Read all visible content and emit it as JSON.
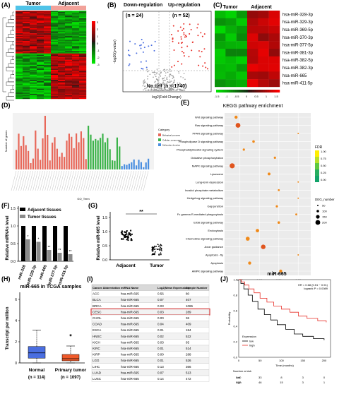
{
  "panels": {
    "A": {
      "letter": "(A)",
      "groups": [
        "Tumor",
        "Adjacent"
      ],
      "group_colors": [
        "#4fc3e8",
        "#f2a29a"
      ],
      "scale_ticks": [
        "3",
        "2",
        "1",
        "0",
        "-1",
        "-2",
        "-3"
      ]
    },
    "B": {
      "letter": "(B)",
      "down_label": "Down-regulation",
      "down_n": "(n = 24)",
      "up_label": "Up-regulation",
      "up_n": "(n = 52)",
      "nodiff": "No diff (n = 1740)",
      "xlabel": "log2(Fold Change)",
      "ylabel": "-log10(p-value)"
    },
    "C": {
      "letter": "(C)",
      "groups": [
        "Tumor",
        "Adjacent"
      ],
      "genes": [
        "hsa-miR-328-3p",
        "hsa-miR-329-3p",
        "hsa-miR-369-5p",
        "hsa-miR-370-3p",
        "hsa-miR-377-5p",
        "hsa-miR-381-3p",
        "hsa-miR-382-5p",
        "hsa-miR-382-3p",
        "hsa-miR-665",
        "hsa-miR-411-5p"
      ],
      "scale_ticks": [
        "-1.5",
        "-1",
        "-0.5",
        "0",
        "0.5",
        "1",
        "1.5"
      ]
    },
    "D": {
      "letter": "(D)",
      "ylabel": "Number of genes",
      "xlabel": "GO_Term",
      "legend_title": "Category",
      "legend": [
        {
          "name": "Biological_process",
          "color": "#e8685a"
        },
        {
          "name": "Cellular_component",
          "color": "#3cb34a"
        },
        {
          "name": "Molecular_function",
          "color": "#4a8fe0"
        }
      ]
    },
    "E": {
      "letter": "(E)",
      "title": "KEGG pathway enrichment",
      "pathways": [
        "Wnt signaling pathway",
        "Ras signaling pathway",
        "PPAR signaling pathway",
        "Phospholipase D signaling pathway",
        "Phosphatidylinositol signaling system",
        "Oxidative phosphorylation",
        "MAPK signaling pathway",
        "Lysosome",
        "Long-term depression",
        "Inositol phosphate metabolism",
        "Hedgehog signaling pathway",
        "Gap junction",
        "Fc gamma R-mediated phagocytosis",
        "ErbB signaling pathway",
        "Endocytosis",
        "Chemokine signaling pathway",
        "Axon guidance",
        "Apoptosis - fly",
        "Apoptosis",
        "AMPK signaling pathway"
      ],
      "x_ticks": [
        "0.97",
        "0.98",
        "0.99",
        "1.00"
      ],
      "fdr_title": "FDR",
      "fdr_ticks": [
        "1.00",
        "0.75",
        "0.50",
        "0.25",
        "0.00"
      ],
      "deg_title": "DEG_number",
      "deg_sizes": [
        "50",
        "100",
        "150",
        "200"
      ]
    },
    "F": {
      "letter": "(F)",
      "ylabel": "Relative miRNAs level",
      "legend": [
        "Adjacent tissues",
        "Tumor tissues"
      ],
      "categories": [
        "miR-328",
        "miR-329-3p",
        "miR-665",
        "miR-377-5p",
        "miR-411-5p"
      ],
      "y_ticks": [
        "0.0",
        "0.5",
        "1.0",
        "1.5"
      ],
      "stars": [
        "*",
        "*",
        "**",
        "**"
      ]
    },
    "G": {
      "letter": "(G)",
      "ylabel": "Relative miR-665 level",
      "groups": [
        "Adjacent",
        "Tumor"
      ],
      "y_ticks": [
        "0.0",
        "0.5",
        "1.0",
        "1.5"
      ],
      "sig": "**"
    },
    "H": {
      "letter": "(H)",
      "title": "miR-665 in TCGA samples",
      "ylabel": "Transcript per million",
      "groups": [
        "Normal",
        "Primary tumor"
      ],
      "ns": [
        "(n = 114)",
        "(n = 1097)"
      ],
      "y_ticks": [
        "0",
        "2",
        "4",
        "6"
      ],
      "sig": "*"
    },
    "I": {
      "letter": "(I)",
      "headers": [
        "Cancer Abbreviation",
        "miRNA Name",
        "Log2(Mean Expression)",
        "Sample Number"
      ],
      "rows": [
        [
          "ACC",
          "hsa-miR-665",
          "0.56",
          "80"
        ],
        [
          "BLCA",
          "hsa-miR-665",
          "0.07",
          "407"
        ],
        [
          "BRCA",
          "hsa-miR-665",
          "0.03",
          "1065"
        ],
        [
          "CESC",
          "hsa-miR-665",
          "0.03",
          "289"
        ],
        [
          "CHOL",
          "hsa-miR-665",
          "0.00",
          "36"
        ],
        [
          "COAD",
          "hsa-miR-665",
          "0.04",
          "409"
        ],
        [
          "ESCA",
          "hsa-miR-665",
          "0.01",
          "184"
        ],
        [
          "HNSC",
          "hsa-miR-665",
          "0.02",
          "522"
        ],
        [
          "KICH",
          "hsa-miR-665",
          "0.03",
          "65"
        ],
        [
          "KIRC",
          "hsa-miR-665",
          "0.01",
          "514"
        ],
        [
          "KIRP",
          "hsa-miR-665",
          "0.00",
          "288"
        ],
        [
          "LGG",
          "hsa-miR-665",
          "0.01",
          "526"
        ],
        [
          "LIHC",
          "hsa-miR-665",
          "0.13",
          "366"
        ],
        [
          "LUAD",
          "hsa-miR-665",
          "0.07",
          "513"
        ],
        [
          "LUSC",
          "hsa-miR-665",
          "0.14",
          "472"
        ]
      ]
    },
    "J": {
      "letter": "(J)",
      "title": "miR-665",
      "stats_hr": "HR = 0.68 (0.51 − 0.91)",
      "stats_p": "logrank P = 0.0089",
      "ylabel": "Probability",
      "xlabel": "Time (months)",
      "legend_title": "Expression",
      "legend": [
        "low",
        "high"
      ],
      "y_ticks": [
        "0.0",
        "0.2",
        "0.4",
        "0.6",
        "0.8",
        "1.0"
      ],
      "x_ticks": [
        "0",
        "50",
        "100",
        "150",
        "200"
      ],
      "risk_title": "Number at risk",
      "risk_low": [
        "low",
        "140",
        "33",
        "8",
        "3",
        "0"
      ],
      "risk_high": [
        "high",
        "122",
        "46",
        "15",
        "3",
        "1"
      ]
    }
  },
  "colors": {
    "tumor": "#4fc3e8",
    "adjacent": "#f2a29a",
    "red": "#e8312a",
    "green": "#22b33a",
    "black": "#000000",
    "gray": "#7f7f7f",
    "box_blue": "#4a6ee0",
    "box_red": "#f05a2a"
  }
}
